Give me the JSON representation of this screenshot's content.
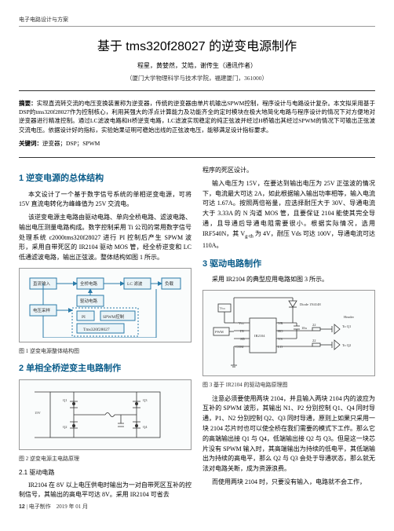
{
  "header": {
    "category": "电子电路设计与方案"
  },
  "title": "基于 tms320f28027 的逆变电源制作",
  "authors": "程星，黄婪然，艾皓，谢传生（通讯作者）",
  "affiliation": "（厦门大学物理科学与技术学院，福建厦门，361000）",
  "abstract_label": "摘要：",
  "abstract": "实现直流转交流的电压变换装置称为逆变器，传统的逆变器由单片机输出SPWM控制，程序设计与电路设计复杂。本文拟采用基于DSP的tms320f28027作为控制核心，利用其强大的浮点计算能力及功能齐全的定时模块在极大地简化电路与程序设计的情况下对方便地对逆变器进行精准控制。通过LC滤波电路和H桥逆变电路，LC滤波实现稳定的纯正弦波并经过H桥输出其经过SPWM的情况下可输出正弦波交流电压。依据设计好的指标，实验始果证明可稳始出线的正弦波电压，能够满足设计指标要求。",
  "keywords_label": "关键词：",
  "keywords": "逆变器；DSP；SPWM",
  "sections": {
    "s1_title": "1 逆变电源的总体结构",
    "s1_p1": "本文设计了一个基于数字信号系统的单相逆变电源，可将 15V 直流电转化为峰峰值为 25V 交流电。",
    "s1_p2": "该逆变电源主电路由驱动电路、单向全桥电路、滤波电路、输出电压测量电路构成。数字控制采用 Ti 公司的常用数字信号处理系统 c2000tms320f28027 进行 PI 控制后产生 SPWM 波形，采用自带死区的 IR2104 驱动 MOS 管，经全桥逆变和 LC 低通滤波电路，输出正弦波。整体结构如图 1 所示。",
    "s2_title": "2 单相全桥逆变主电路制作",
    "s2_sub": "2.1 驱动电路",
    "s2_p1": "IR2104 在 8V 以上电压供电时输出为一对自带死区互补的控制信号，其输出的高电平可达 8V。采用 IR2104 可省去",
    "s3_right_p1": "程序的死区设计。",
    "s3_right_p2": "输入电压为 15V，在要达到输出电压为 25V 正弦波的情况下，电流最大可达 2A，如此根据输入输出功率相等，输入电流可达 1.67A。按照两倍裕量，应选择耐压大于 30V、导通电流大于 3.33A 的 N 沟道 MOS 管，且要保证 2104 能使其完全导通，且导通后导通电阻需要很小。根据实际情况，选用 IRF540N，其 V<sub>g-th</sub> 为 4V，耐压 Vds 可达 100V，导通电流可达 110A。",
    "s3_title": "3 驱动电路制作",
    "s3_p1": "采用 IR2104 的典型应用电路如图 3 所示。",
    "s3_p2": "注意必须要使用两块 2104，并且输入两块 2104 内的波应为互补的 SPWM 波形，其输出 N1、P2 分别控制 Q1、Q4 同时导通，P1、N2 分别控制 Q2、Q3 同时导通，原则上如果只采用一块 2104 芯片时也可以使全桥在我们需要的模式下工作。那么它的高端输出接 Q1 与 Q4，低端输出接 Q2 与 Q3。但是这一块芯片没有 SPWM 输入时，其高端输出为持续的低电平，其低端输出为持续的高电平，那么 Q2 与 Q3 会处于导通状态，那么就无法对电路关断，成为资源浪费。",
    "s3_p3": "而使用两块 2104 时，只要没有输入，电路就不会工作，"
  },
  "figures": {
    "f1_caption": "图 1  逆变电源整体结构图",
    "f2_caption": "图 2  逆变电源主电路原理",
    "f3_caption": "图 3  基于 IR2104 的驱动电路原理图",
    "f1_boxes": {
      "dc_in": "直流输入",
      "full_bridge": "全桥电路",
      "lc": "LC 滤波",
      "load": "负载",
      "drive": "驱动电路",
      "pi": "PI",
      "spwm": "SPWM控制",
      "tms": "Tms320f28027",
      "sample": "电压采样"
    }
  },
  "footer": {
    "page": "12",
    "journal": "电子制作",
    "date": "2019 年 01 月"
  },
  "colors": {
    "section": "#0a5c8a",
    "box_fill": "#eaf4f8",
    "box_stroke": "#2a7aa8"
  }
}
